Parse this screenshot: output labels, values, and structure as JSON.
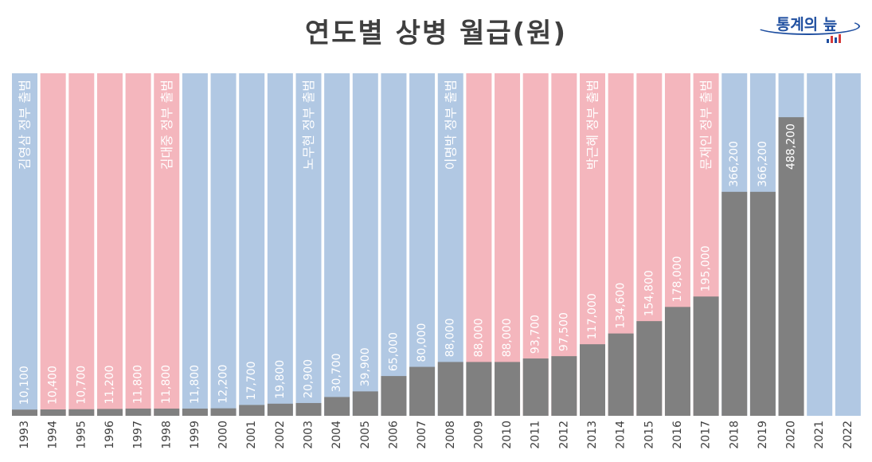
{
  "title": "연도별 상병 월급(원)",
  "logo": {
    "text": "통계의 늪"
  },
  "colors": {
    "conservative": "#f4b6bd",
    "progressive": "#b1c8e3",
    "bar": "#808080",
    "year_label": "#404040",
    "value_label": "#ffffff"
  },
  "chart_data": {
    "type": "bar",
    "title": "연도별 상병 월급(원)",
    "xlabel": "",
    "ylabel": "",
    "ylim": [
      0,
      560000
    ],
    "categories": [
      "1993",
      "1994",
      "1995",
      "1996",
      "1997",
      "1998",
      "1999",
      "2000",
      "2001",
      "2002",
      "2003",
      "2004",
      "2005",
      "2006",
      "2007",
      "2008",
      "2009",
      "2010",
      "2011",
      "2012",
      "2013",
      "2014",
      "2015",
      "2016",
      "2017",
      "2018",
      "2019",
      "2020",
      "2021",
      "2022"
    ],
    "values": [
      10100,
      10400,
      10700,
      11200,
      11800,
      11800,
      11800,
      12200,
      17700,
      19800,
      20900,
      30700,
      39900,
      65000,
      80000,
      88000,
      88000,
      88000,
      93700,
      97500,
      117000,
      134600,
      154800,
      178000,
      195000,
      366200,
      366200,
      488200,
      null,
      null
    ],
    "value_labels": [
      "10,100",
      "10,400",
      "10,700",
      "11,200",
      "11,800",
      "11,800",
      "11,800",
      "12,200",
      "17,700",
      "19,800",
      "20,900",
      "30,700",
      "39,900",
      "65,000",
      "80,000",
      "88,000",
      "88,000",
      "88,000",
      "93,700",
      "97,500",
      "117,000",
      "134,600",
      "154,800",
      "178,000",
      "195,000",
      "366,200",
      "366,200",
      "488,200",
      "",
      ""
    ],
    "background_shading": [
      "blue",
      "pink",
      "pink",
      "pink",
      "pink",
      "pink",
      "blue",
      "blue",
      "blue",
      "blue",
      "blue",
      "blue",
      "blue",
      "blue",
      "blue",
      "blue",
      "pink",
      "pink",
      "pink",
      "pink",
      "pink",
      "pink",
      "pink",
      "pink",
      "pink",
      "blue",
      "blue",
      "blue",
      "blue",
      "blue"
    ],
    "annotations": [
      {
        "year": "1993",
        "text": "김영삼 정부 출범"
      },
      {
        "year": "1998",
        "text": "김대중 정부 출범"
      },
      {
        "year": "2003",
        "text": "노무현 정부 출범"
      },
      {
        "year": "2008",
        "text": "이명박 정부 출범"
      },
      {
        "year": "2013",
        "text": "박근혜 정부 출범"
      },
      {
        "year": "2017",
        "text": "문재인 정부 출범"
      }
    ],
    "grid": false,
    "legend": "none"
  }
}
